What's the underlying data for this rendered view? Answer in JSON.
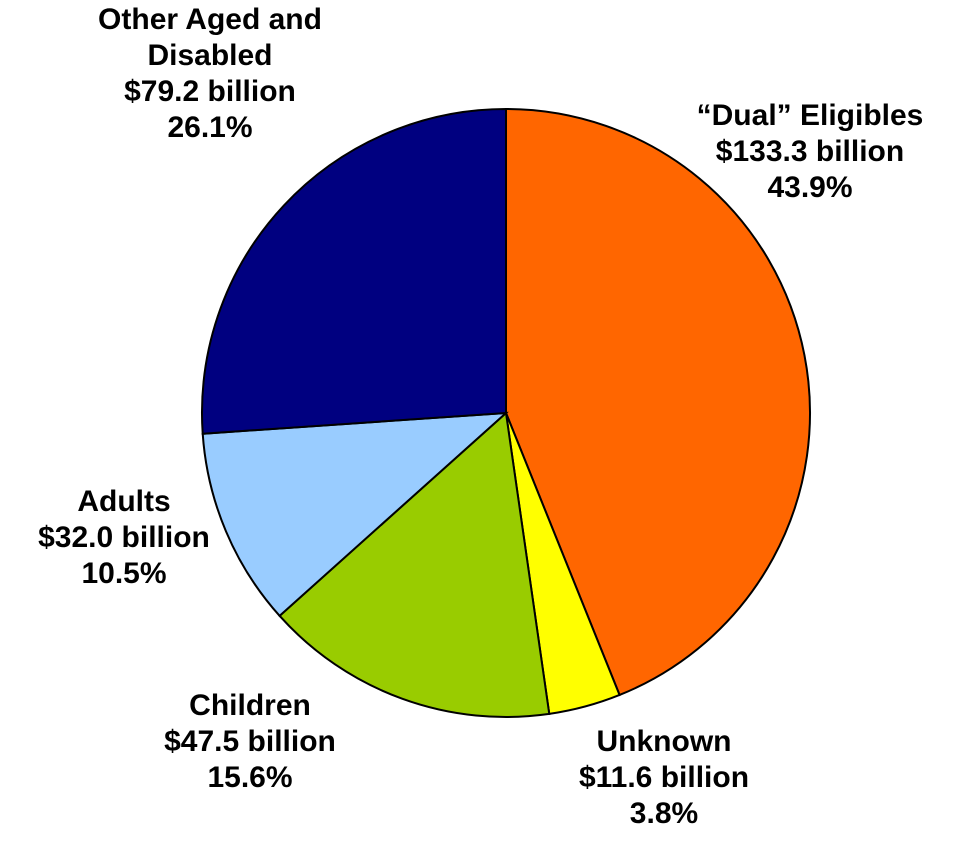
{
  "chart_data": {
    "type": "pie",
    "start_angle_deg": 0,
    "direction": "clockwise",
    "slices": [
      {
        "label": "“Dual” Eligibles",
        "value": 133.3,
        "value_text": "$133.3 billion",
        "percent_text": "43.9%",
        "color": "#FF6600"
      },
      {
        "label": "Unknown",
        "value": 11.6,
        "value_text": "$11.6 billion",
        "percent_text": "3.8%",
        "color": "#FFFF00"
      },
      {
        "label": "Children",
        "value": 47.5,
        "value_text": "$47.5 billion",
        "percent_text": "15.6%",
        "color": "#99CC00"
      },
      {
        "label": "Adults",
        "value": 32.0,
        "value_text": "$32.0 billion",
        "percent_text": "10.5%",
        "color": "#99CCFF"
      },
      {
        "label": "Other Aged and Disabled",
        "value": 79.2,
        "value_text": "$79.2 billion",
        "percent_text": "26.1%",
        "color": "#000080"
      }
    ]
  }
}
